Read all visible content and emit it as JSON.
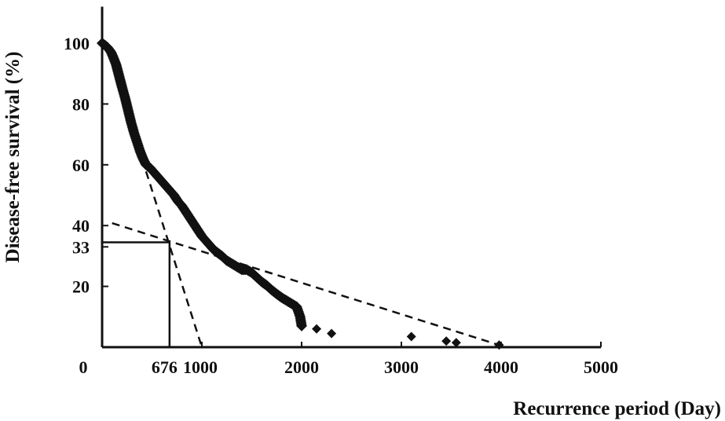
{
  "chart_data": {
    "type": "scatter",
    "xlabel": "Recurrence period (Day)",
    "ylabel": "Disease-free survival (%)",
    "xlim": [
      0,
      5000
    ],
    "ylim": [
      0,
      112
    ],
    "x_ticks": [
      {
        "value": 0,
        "label": "0"
      },
      {
        "value": 676,
        "label": "676"
      },
      {
        "value": 1000,
        "label": "1000"
      },
      {
        "value": 2000,
        "label": "2000"
      },
      {
        "value": 3000,
        "label": "3000"
      },
      {
        "value": 4000,
        "label": "4000"
      },
      {
        "value": 5000,
        "label": "5000"
      }
    ],
    "y_ticks": [
      {
        "value": 20,
        "label": "20"
      },
      {
        "value": 33,
        "label": "33"
      },
      {
        "value": 40,
        "label": "40"
      },
      {
        "value": 60,
        "label": "60"
      },
      {
        "value": 80,
        "label": "80"
      },
      {
        "value": 100,
        "label": "100"
      }
    ],
    "grid": false,
    "legend": "none",
    "marker": "diamond",
    "marker_color": "#111111",
    "curve_points": [
      [
        0,
        100
      ],
      [
        30,
        99.3
      ],
      [
        60,
        98.4
      ],
      [
        90,
        97
      ],
      [
        110,
        95.5
      ],
      [
        140,
        93
      ],
      [
        160,
        90.5
      ],
      [
        180,
        88
      ],
      [
        200,
        85.5
      ],
      [
        230,
        82
      ],
      [
        260,
        78
      ],
      [
        290,
        74
      ],
      [
        320,
        70.5
      ],
      [
        350,
        67.5
      ],
      [
        380,
        64.5
      ],
      [
        410,
        62
      ],
      [
        440,
        60
      ],
      [
        480,
        59
      ],
      [
        520,
        57.5
      ],
      [
        560,
        56
      ],
      [
        600,
        54.5
      ],
      [
        640,
        53
      ],
      [
        680,
        51.5
      ],
      [
        720,
        50
      ],
      [
        760,
        48
      ],
      [
        800,
        46.5
      ],
      [
        840,
        44.5
      ],
      [
        880,
        42.5
      ],
      [
        920,
        40.5
      ],
      [
        960,
        38.5
      ],
      [
        1000,
        36.5
      ],
      [
        1040,
        35
      ],
      [
        1080,
        33.5
      ],
      [
        1120,
        32
      ],
      [
        1160,
        31
      ],
      [
        1200,
        30
      ],
      [
        1250,
        28.5
      ],
      [
        1300,
        27.5
      ],
      [
        1350,
        26.5
      ],
      [
        1400,
        25.5
      ],
      [
        1450,
        25.5
      ],
      [
        1500,
        24.5
      ],
      [
        1550,
        23
      ],
      [
        1600,
        21.5
      ],
      [
        1650,
        20.3
      ],
      [
        1700,
        18.8
      ],
      [
        1750,
        17.5
      ],
      [
        1800,
        16.3
      ],
      [
        1850,
        15.3
      ],
      [
        1900,
        14.3
      ],
      [
        1950,
        13.3
      ],
      [
        1985,
        10
      ],
      [
        2000,
        7
      ]
    ],
    "outlier_points": [
      [
        2150,
        6
      ],
      [
        2300,
        4.5
      ],
      [
        3100,
        3.5
      ],
      [
        3450,
        2
      ],
      [
        3550,
        1.5
      ],
      [
        3980,
        0.7
      ]
    ],
    "reference_lines": [
      {
        "style": "dashed",
        "points": [
          [
            400,
            62
          ],
          [
            1000,
            0
          ]
        ]
      },
      {
        "style": "dashed",
        "points": [
          [
            100,
            40.8
          ],
          [
            4000,
            0.5
          ]
        ]
      },
      {
        "style": "solid",
        "points": [
          [
            0,
            34.5
          ],
          [
            676,
            34.5
          ]
        ]
      },
      {
        "style": "solid",
        "points": [
          [
            676,
            34.5
          ],
          [
            676,
            0
          ]
        ]
      }
    ]
  }
}
